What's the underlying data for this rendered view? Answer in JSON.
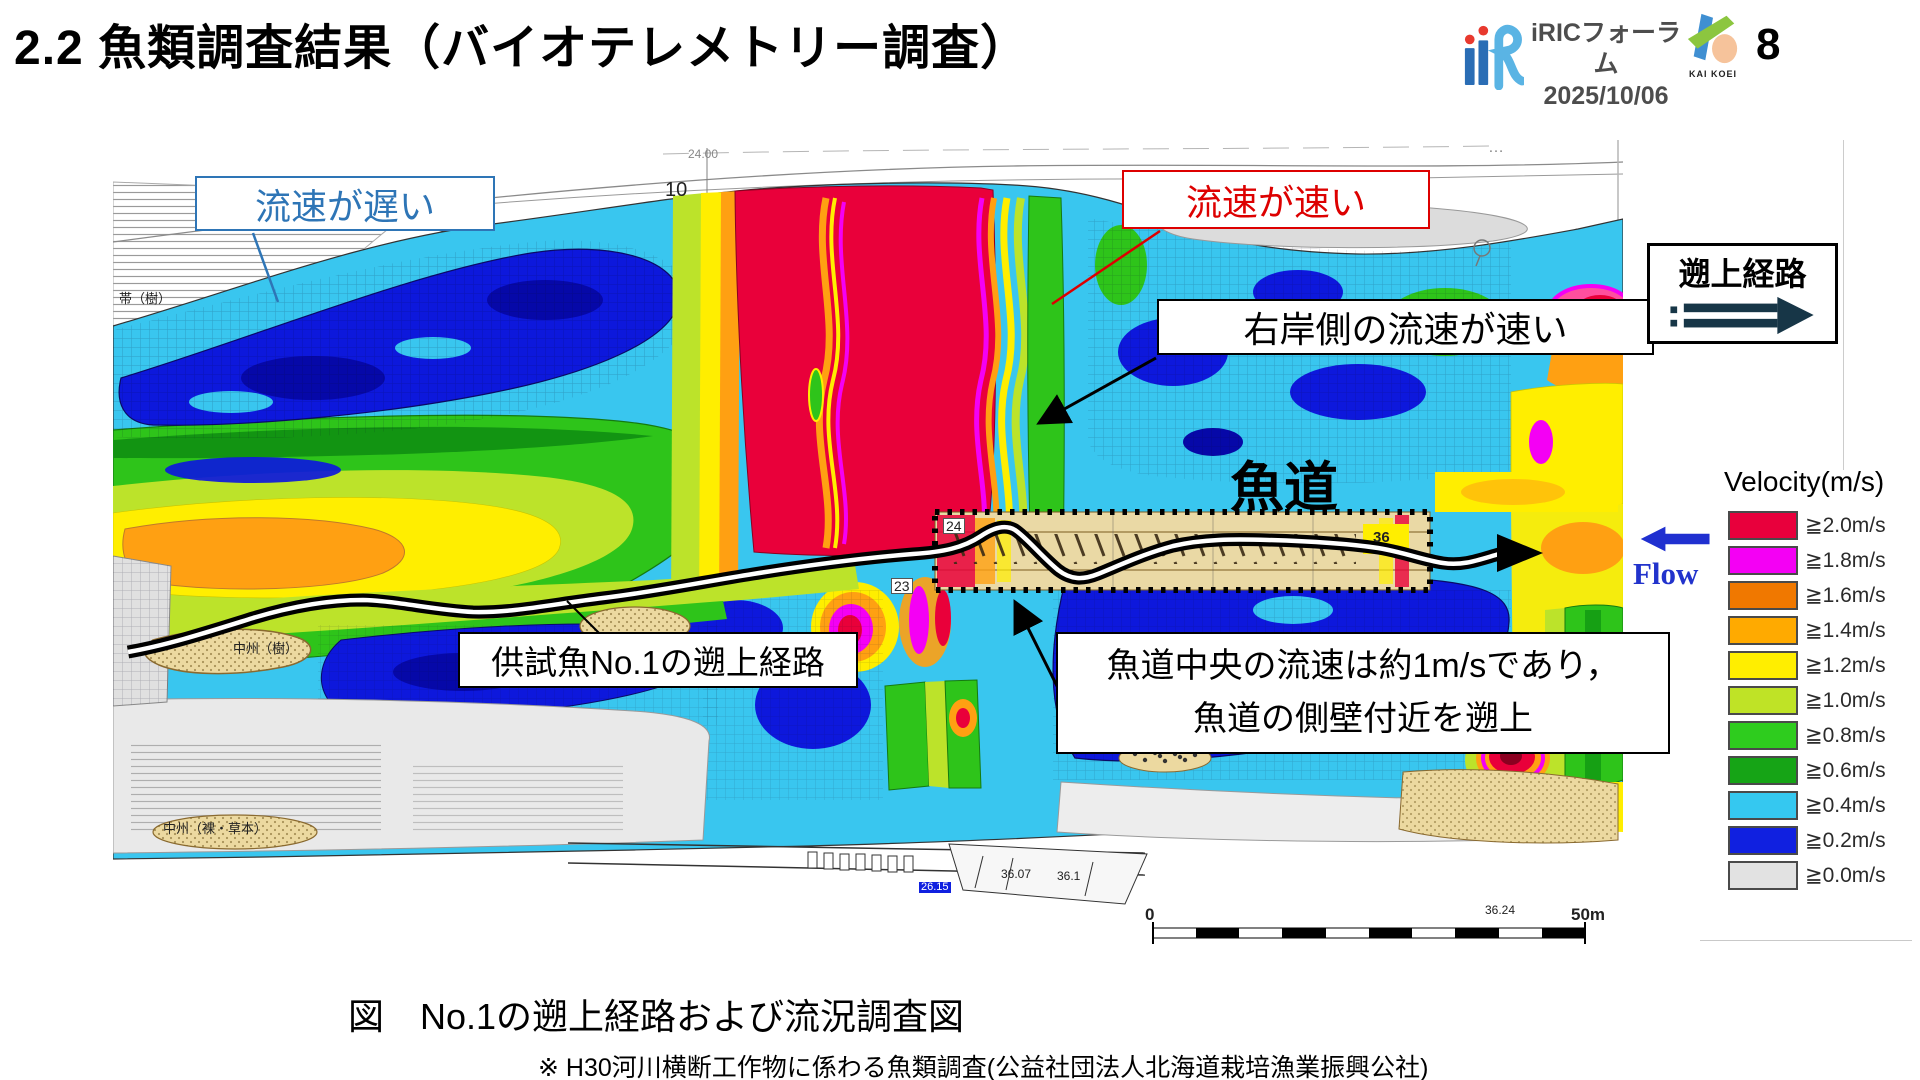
{
  "slide": {
    "title": "2.2 魚類調査結果（バイオテレメトリー調査）",
    "page_number": "8",
    "figure_caption": "図　No.1の遡上経路および流況調査図",
    "source_note": "※ H30河川横断工作物に係わる魚類調査(公益社団法人北海道栽培漁業振興公社)"
  },
  "header": {
    "forum_name": "iRICフォーラム",
    "forum_date": "2025/10/06",
    "company_logo_text": "KAI KOEI"
  },
  "annotations": {
    "slow_flow": "流速が遅い",
    "fast_flow": "流速が速い",
    "right_bank_fast": "右岸側の流速が速い",
    "fishway": "魚道",
    "fish_route": "供試魚No.1の遡上経路",
    "center_note_line1": "魚道中央の流速は約1m/sであり，",
    "center_note_line2": "魚道の側壁付近を遡上",
    "ascent_route": "遡上経路",
    "flow": "Flow"
  },
  "legend": {
    "title": "Velocity(m/s)",
    "items": [
      {
        "label": "≧2.0m/s",
        "color": "#e8003c"
      },
      {
        "label": "≧1.8m/s",
        "color": "#f400f4"
      },
      {
        "label": "≧1.6m/s",
        "color": "#f07800"
      },
      {
        "label": "≧1.4m/s",
        "color": "#ffaa00"
      },
      {
        "label": "≧1.2m/s",
        "color": "#ffee00"
      },
      {
        "label": "≧1.0m/s",
        "color": "#bfe326"
      },
      {
        "label": "≧0.8m/s",
        "color": "#2ecc1e"
      },
      {
        "label": "≧0.6m/s",
        "color": "#16a416"
      },
      {
        "label": "≧0.4m/s",
        "color": "#35c8f0"
      },
      {
        "label": "≧0.2m/s",
        "color": "#1020e0"
      },
      {
        "label": "≧0.0m/s",
        "color": "#e2e2e2"
      }
    ]
  },
  "map_labels": {
    "station": "10",
    "elevation": "24.00",
    "dots": "…",
    "chip_24": "24",
    "chip_23": "23",
    "chip_36": "36",
    "num_36_07": "36.07",
    "num_36_1": "36.1",
    "num_26_15": "26.15",
    "num_36_24": "36.24",
    "scale_start": "0",
    "scale_end": "50m",
    "bank": "帯（樹）",
    "island_tree": "中州（樹）",
    "island_bare": "中州（裸・草本）"
  }
}
